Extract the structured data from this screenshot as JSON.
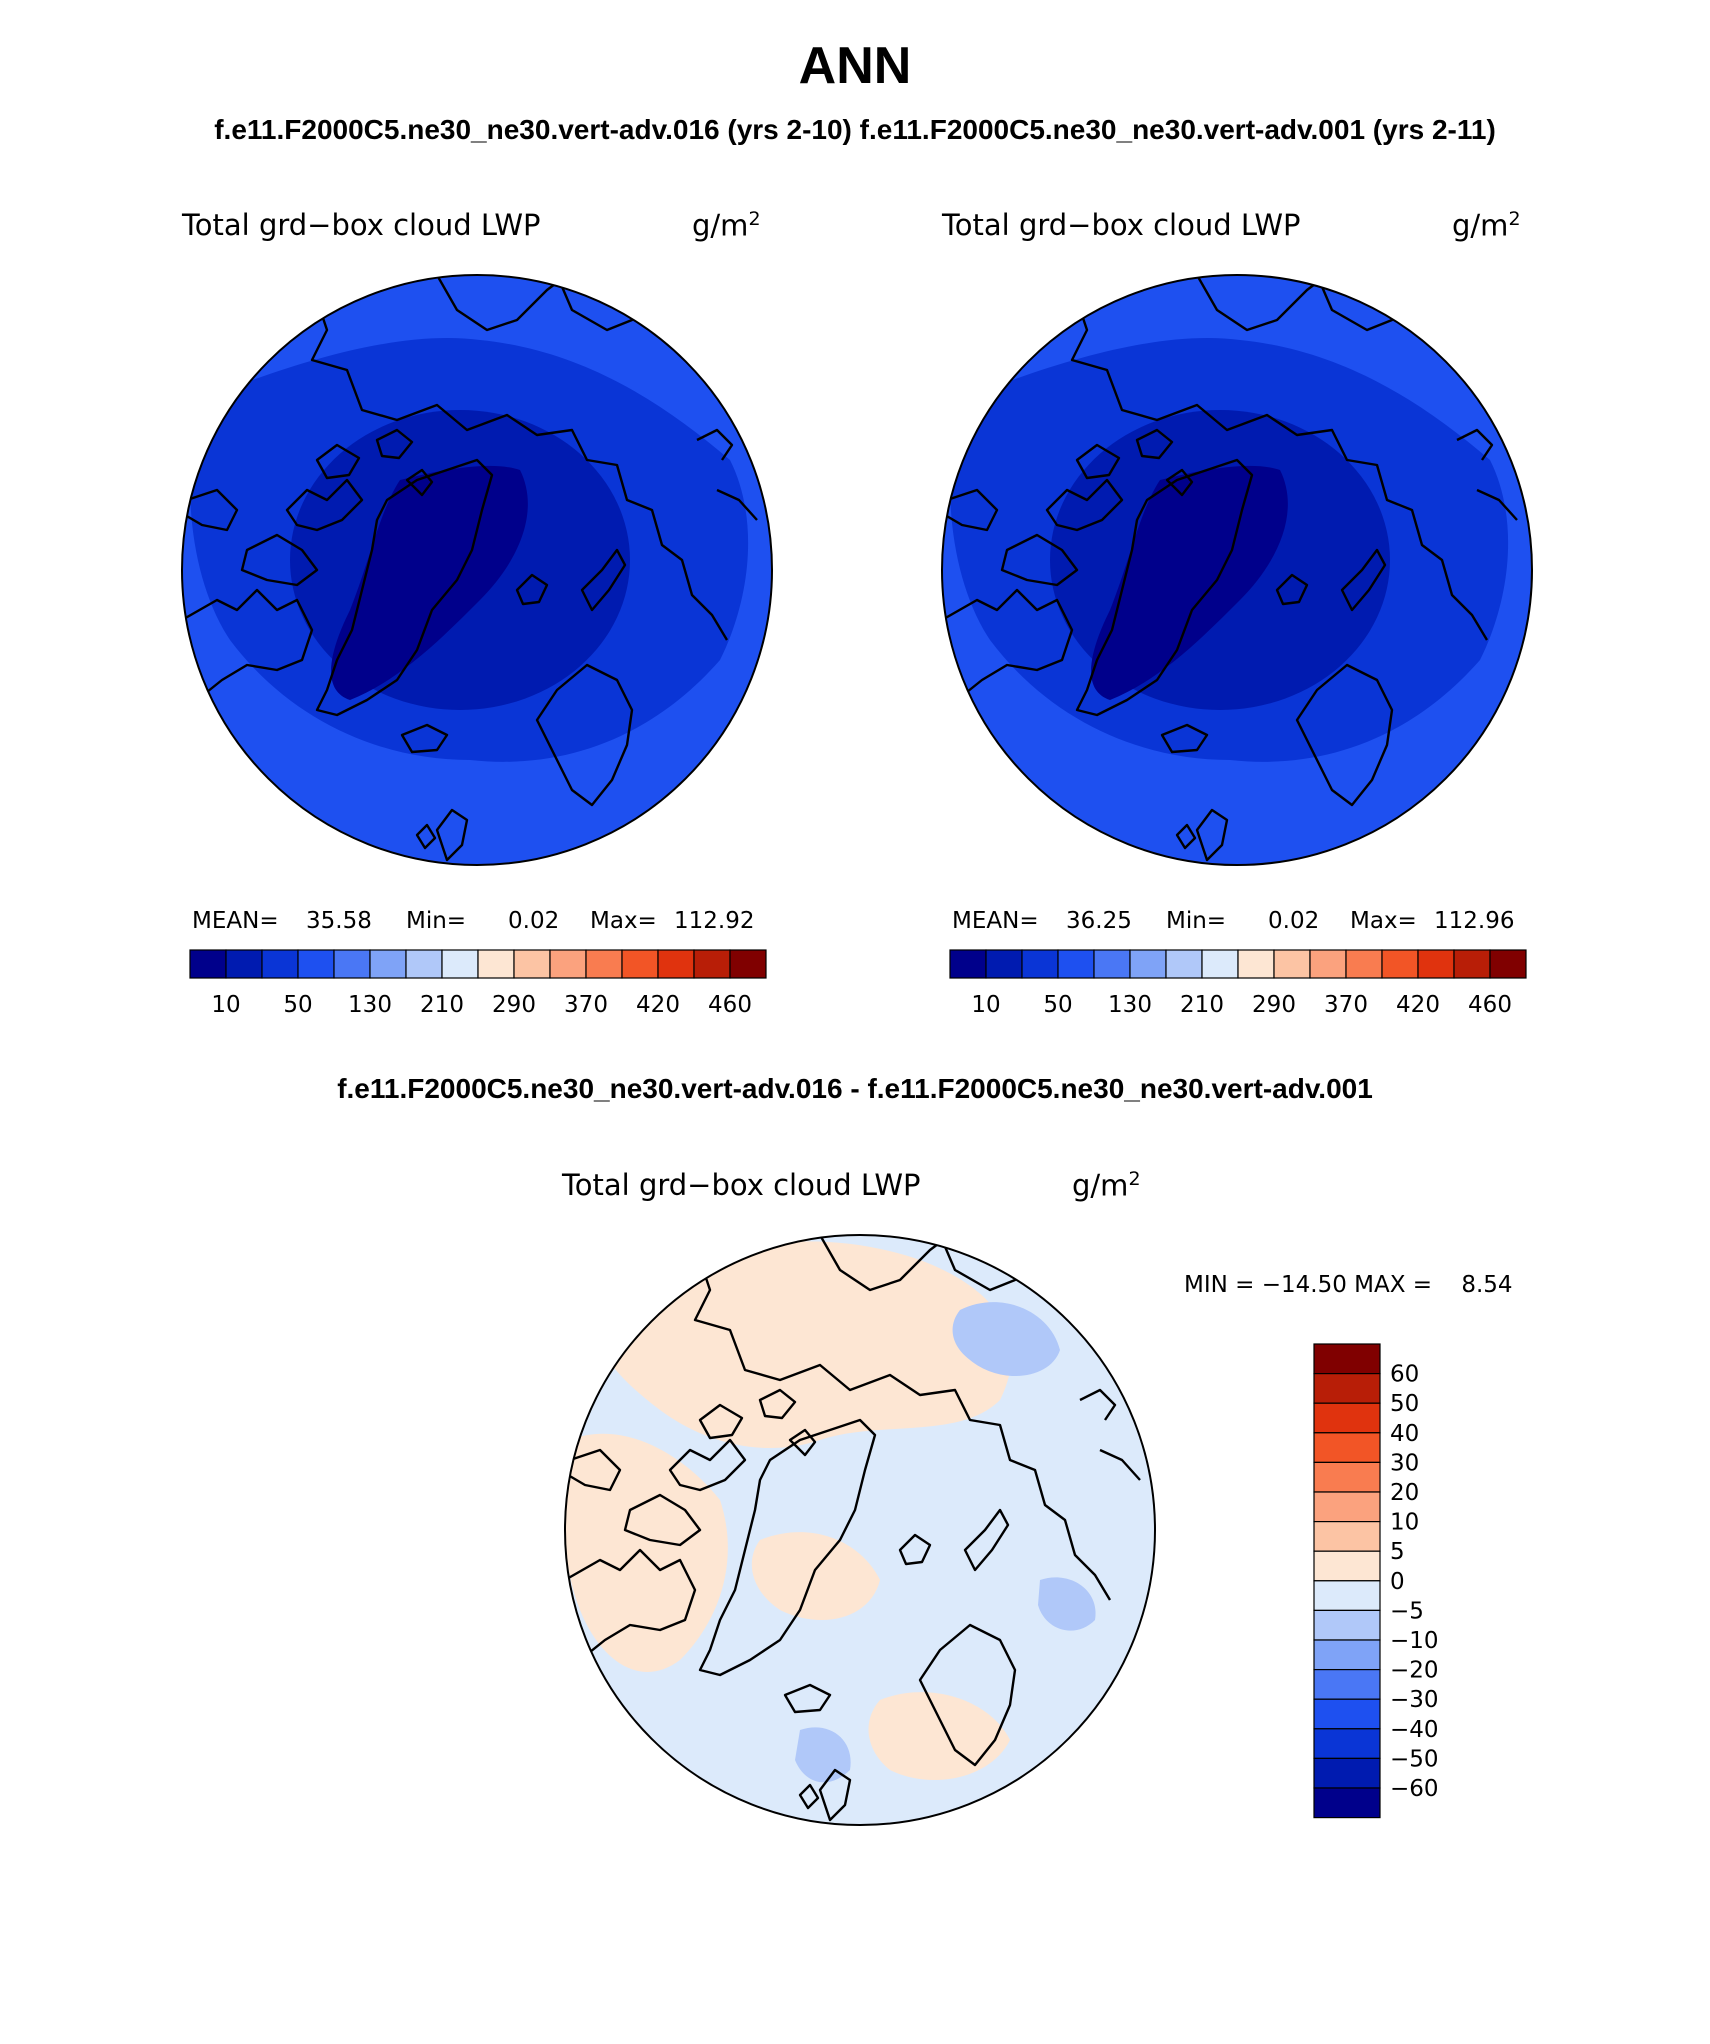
{
  "header": {
    "title": "ANN",
    "subtitle": "f.e11.F2000C5.ne30_ne30.vert-adv.016 (yrs 2-10) f.e11.F2000C5.ne30_ne30.vert-adv.001 (yrs 2-11)",
    "diff_title": "f.e11.F2000C5.ne30_ne30.vert-adv.016 - f.e11.F2000C5.ne30_ne30.vert-adv.001"
  },
  "panels": [
    {
      "variable": "Total grd−box cloud LWP",
      "units_base": "g/m",
      "units_exp": "2",
      "mean_label": "MEAN=",
      "mean_value": "35.58",
      "min_label": "Min=",
      "min_value": "0.02",
      "max_label": "Max=",
      "max_value": "112.92"
    },
    {
      "variable": "Total grd−box cloud LWP",
      "units_base": "g/m",
      "units_exp": "2",
      "mean_label": "MEAN=",
      "mean_value": "36.25",
      "min_label": "Min=",
      "min_value": "0.02",
      "max_label": "Max=",
      "max_value": "112.96"
    }
  ],
  "abs_colorbar": {
    "tick_labels": [
      "10",
      "50",
      "130",
      "210",
      "290",
      "370",
      "420",
      "460"
    ],
    "colors": [
      "#00008b",
      "#001bb0",
      "#0a35d6",
      "#1e50f0",
      "#4a77f5",
      "#7fa3f7",
      "#b0c8f9",
      "#dceafb",
      "#fde6d3",
      "#fcc4a4",
      "#fba27e",
      "#f97c50",
      "#f25526",
      "#e0330e",
      "#b81e07",
      "#800000"
    ]
  },
  "diff_panel": {
    "variable": "Total grd−box cloud LWP",
    "units_base": "g/m",
    "units_exp": "2",
    "minmax_text": "MIN = −14.50 MAX =    8.54",
    "colorbar": {
      "labels_top_to_bottom": [
        "60",
        "50",
        "40",
        "30",
        "20",
        "10",
        "5",
        "0",
        "−5",
        "−10",
        "−20",
        "−30",
        "−40",
        "−50",
        "−60"
      ],
      "colors_top_to_bottom": [
        "#800000",
        "#b81e07",
        "#e0330e",
        "#f25526",
        "#f97c50",
        "#fba27e",
        "#fcc4a4",
        "#fde6d3",
        "#dceafb",
        "#b0c8f9",
        "#7fa3f7",
        "#4a77f5",
        "#1e50f0",
        "#0a35d6",
        "#001bb0",
        "#00008b"
      ]
    }
  },
  "map_colors": {
    "ocean_outer": "#1e50f0",
    "ocean_mid": "#0a35d6",
    "arctic_basin": "#001bb0",
    "greenland": "#00008b",
    "diff_positive": "#fde6d3",
    "diff_negative": "#dceafb",
    "diff_neg_strong": "#b0c8f9"
  }
}
